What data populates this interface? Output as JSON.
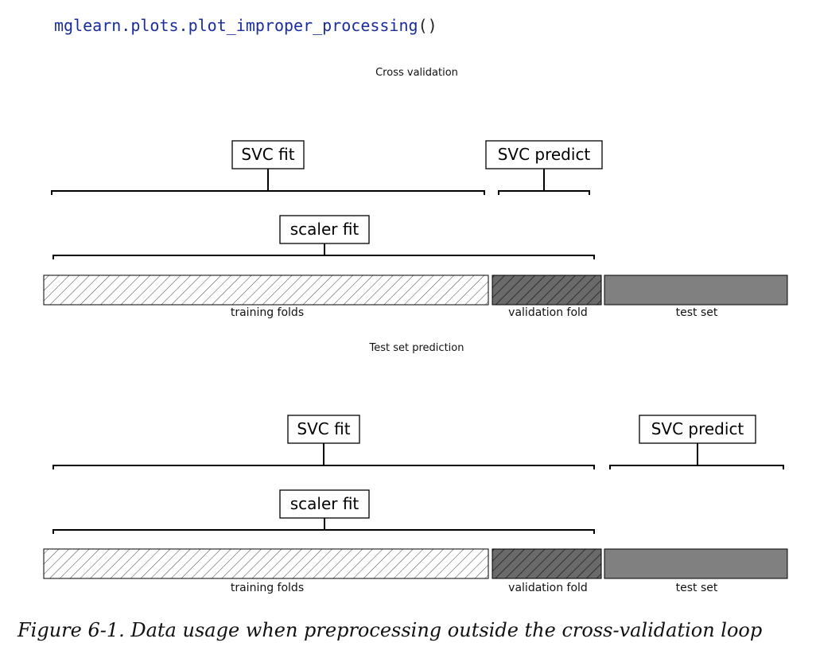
{
  "code": {
    "call": "mglearn.plots.plot_improper_processing",
    "args": "()"
  },
  "panels": [
    {
      "title": "Cross validation",
      "svc_fit_label": "SVC fit",
      "svc_predict_label": "SVC predict",
      "scaler_fit_label": "scaler fit",
      "bars": {
        "training": "training folds",
        "validation": "validation fold",
        "test": "test set"
      }
    },
    {
      "title": "Test set prediction",
      "svc_fit_label": "SVC fit",
      "svc_predict_label": "SVC predict",
      "scaler_fit_label": "scaler fit",
      "bars": {
        "training": "training folds",
        "validation": "validation fold",
        "test": "test set"
      }
    }
  ],
  "caption": "Figure 6-1. Data usage when preprocessing outside the cross-validation loop",
  "colors": {
    "code_text": "#1a2d9c",
    "validation_fill": "#666666",
    "test_fill": "#808080",
    "hatch": "#444444"
  }
}
